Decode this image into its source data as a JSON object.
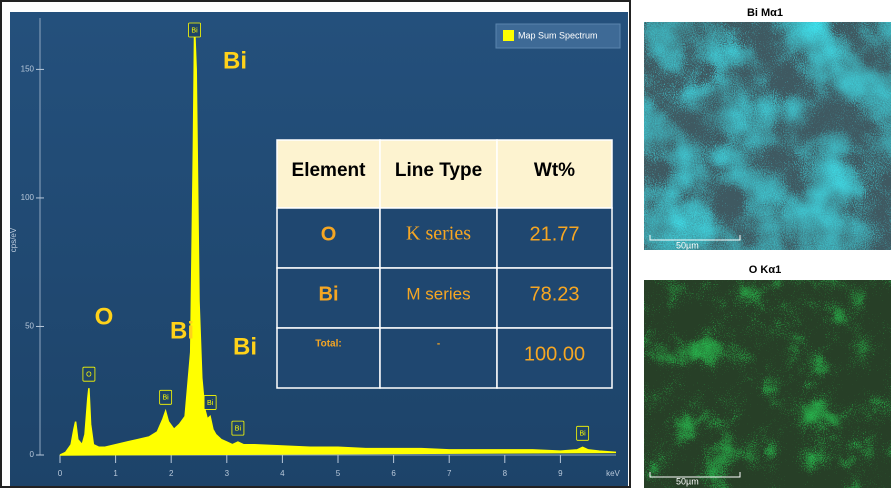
{
  "chart_data": {
    "type": "line",
    "legend": "Map Sum Spectrum",
    "y_label": "cps/eV",
    "x_label": "keV",
    "color": "#ffff00",
    "x": [
      0,
      0.1,
      0.2,
      0.25,
      0.28,
      0.32,
      0.4,
      0.45,
      0.5,
      0.52,
      0.55,
      0.6,
      0.7,
      0.8,
      1.0,
      1.2,
      1.4,
      1.6,
      1.75,
      1.85,
      1.9,
      1.95,
      2.05,
      2.15,
      2.25,
      2.35,
      2.4,
      2.42,
      2.45,
      2.5,
      2.55,
      2.6,
      2.65,
      2.7,
      2.75,
      2.8,
      2.9,
      3.0,
      3.1,
      3.2,
      3.3,
      3.5,
      4,
      4.5,
      5,
      5.5,
      6,
      6.5,
      7,
      7.5,
      8,
      8.5,
      9,
      9.3,
      9.4,
      9.5,
      9.7,
      10
    ],
    "values": [
      0,
      1,
      4,
      10,
      13,
      6,
      4,
      8,
      22,
      26,
      12,
      4,
      3,
      3,
      4,
      5,
      6,
      7,
      9,
      14,
      17,
      13,
      10,
      12,
      15,
      40,
      120,
      166,
      150,
      60,
      30,
      18,
      14,
      15,
      10,
      8,
      6,
      5,
      4,
      5,
      4,
      4,
      3.5,
      3,
      3,
      2.5,
      2.5,
      2.5,
      2,
      2,
      2,
      2,
      1.5,
      2,
      3,
      2,
      1.5,
      1
    ],
    "xlim": [
      0,
      10
    ],
    "xticks": [
      0,
      1,
      2,
      3,
      4,
      5,
      6,
      7,
      8,
      9
    ],
    "ylim": [
      0,
      170
    ],
    "yticks": [
      0,
      50,
      100,
      150
    ],
    "peak_markers": [
      {
        "label": "O",
        "x": 0.52
      },
      {
        "label": "Bi",
        "x": 1.9
      },
      {
        "label": "Bi",
        "x": 2.42
      },
      {
        "label": "Bi",
        "x": 2.7
      },
      {
        "label": "Bi",
        "x": 3.2
      },
      {
        "label": "Bi",
        "x": 9.4
      }
    ],
    "annotations": [
      "Bi",
      "O",
      "Bi",
      "Bi"
    ]
  },
  "table": {
    "header": [
      "Element",
      "Line Type",
      "Wt%"
    ],
    "rows": [
      [
        "O",
        "K series",
        "21.77"
      ],
      [
        "Bi",
        "M series",
        "78.23"
      ],
      [
        "Total:",
        "-",
        "100.00"
      ]
    ]
  },
  "maps": [
    {
      "title": "Bi Mα1",
      "scale": "50µm"
    },
    {
      "title": "O Kα1",
      "scale": "50µm"
    }
  ]
}
